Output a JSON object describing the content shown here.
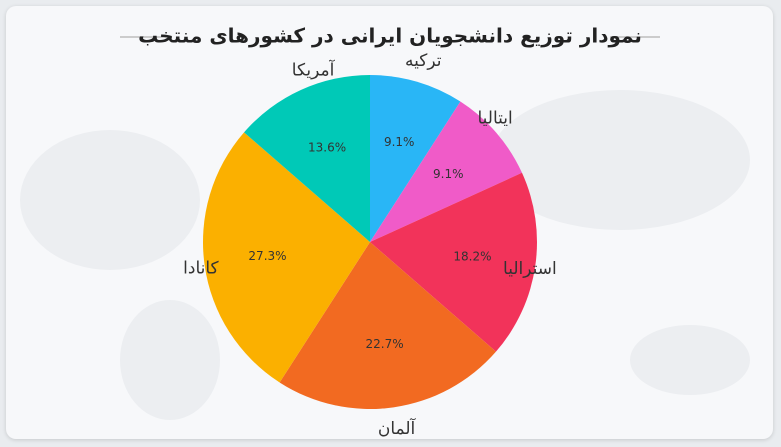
{
  "chart_data": {
    "type": "pie",
    "title": "نمودار توزیع دانشجویان ایرانی در کشورهای منتخب",
    "categories": [
      "ترکیه",
      "ایتالیا",
      "استرالیا",
      "آلمان",
      "کانادا",
      "آمریکا"
    ],
    "values": [
      9.1,
      9.1,
      18.2,
      22.7,
      27.3,
      13.6
    ],
    "value_labels": [
      "9.1%",
      "9.1%",
      "18.2%",
      "22.7%",
      "27.3%",
      "13.6%"
    ],
    "colors": [
      "#29b6f6",
      "#f05bc8",
      "#f2335a",
      "#f26a21",
      "#fbb000",
      "#00c9b7"
    ]
  }
}
